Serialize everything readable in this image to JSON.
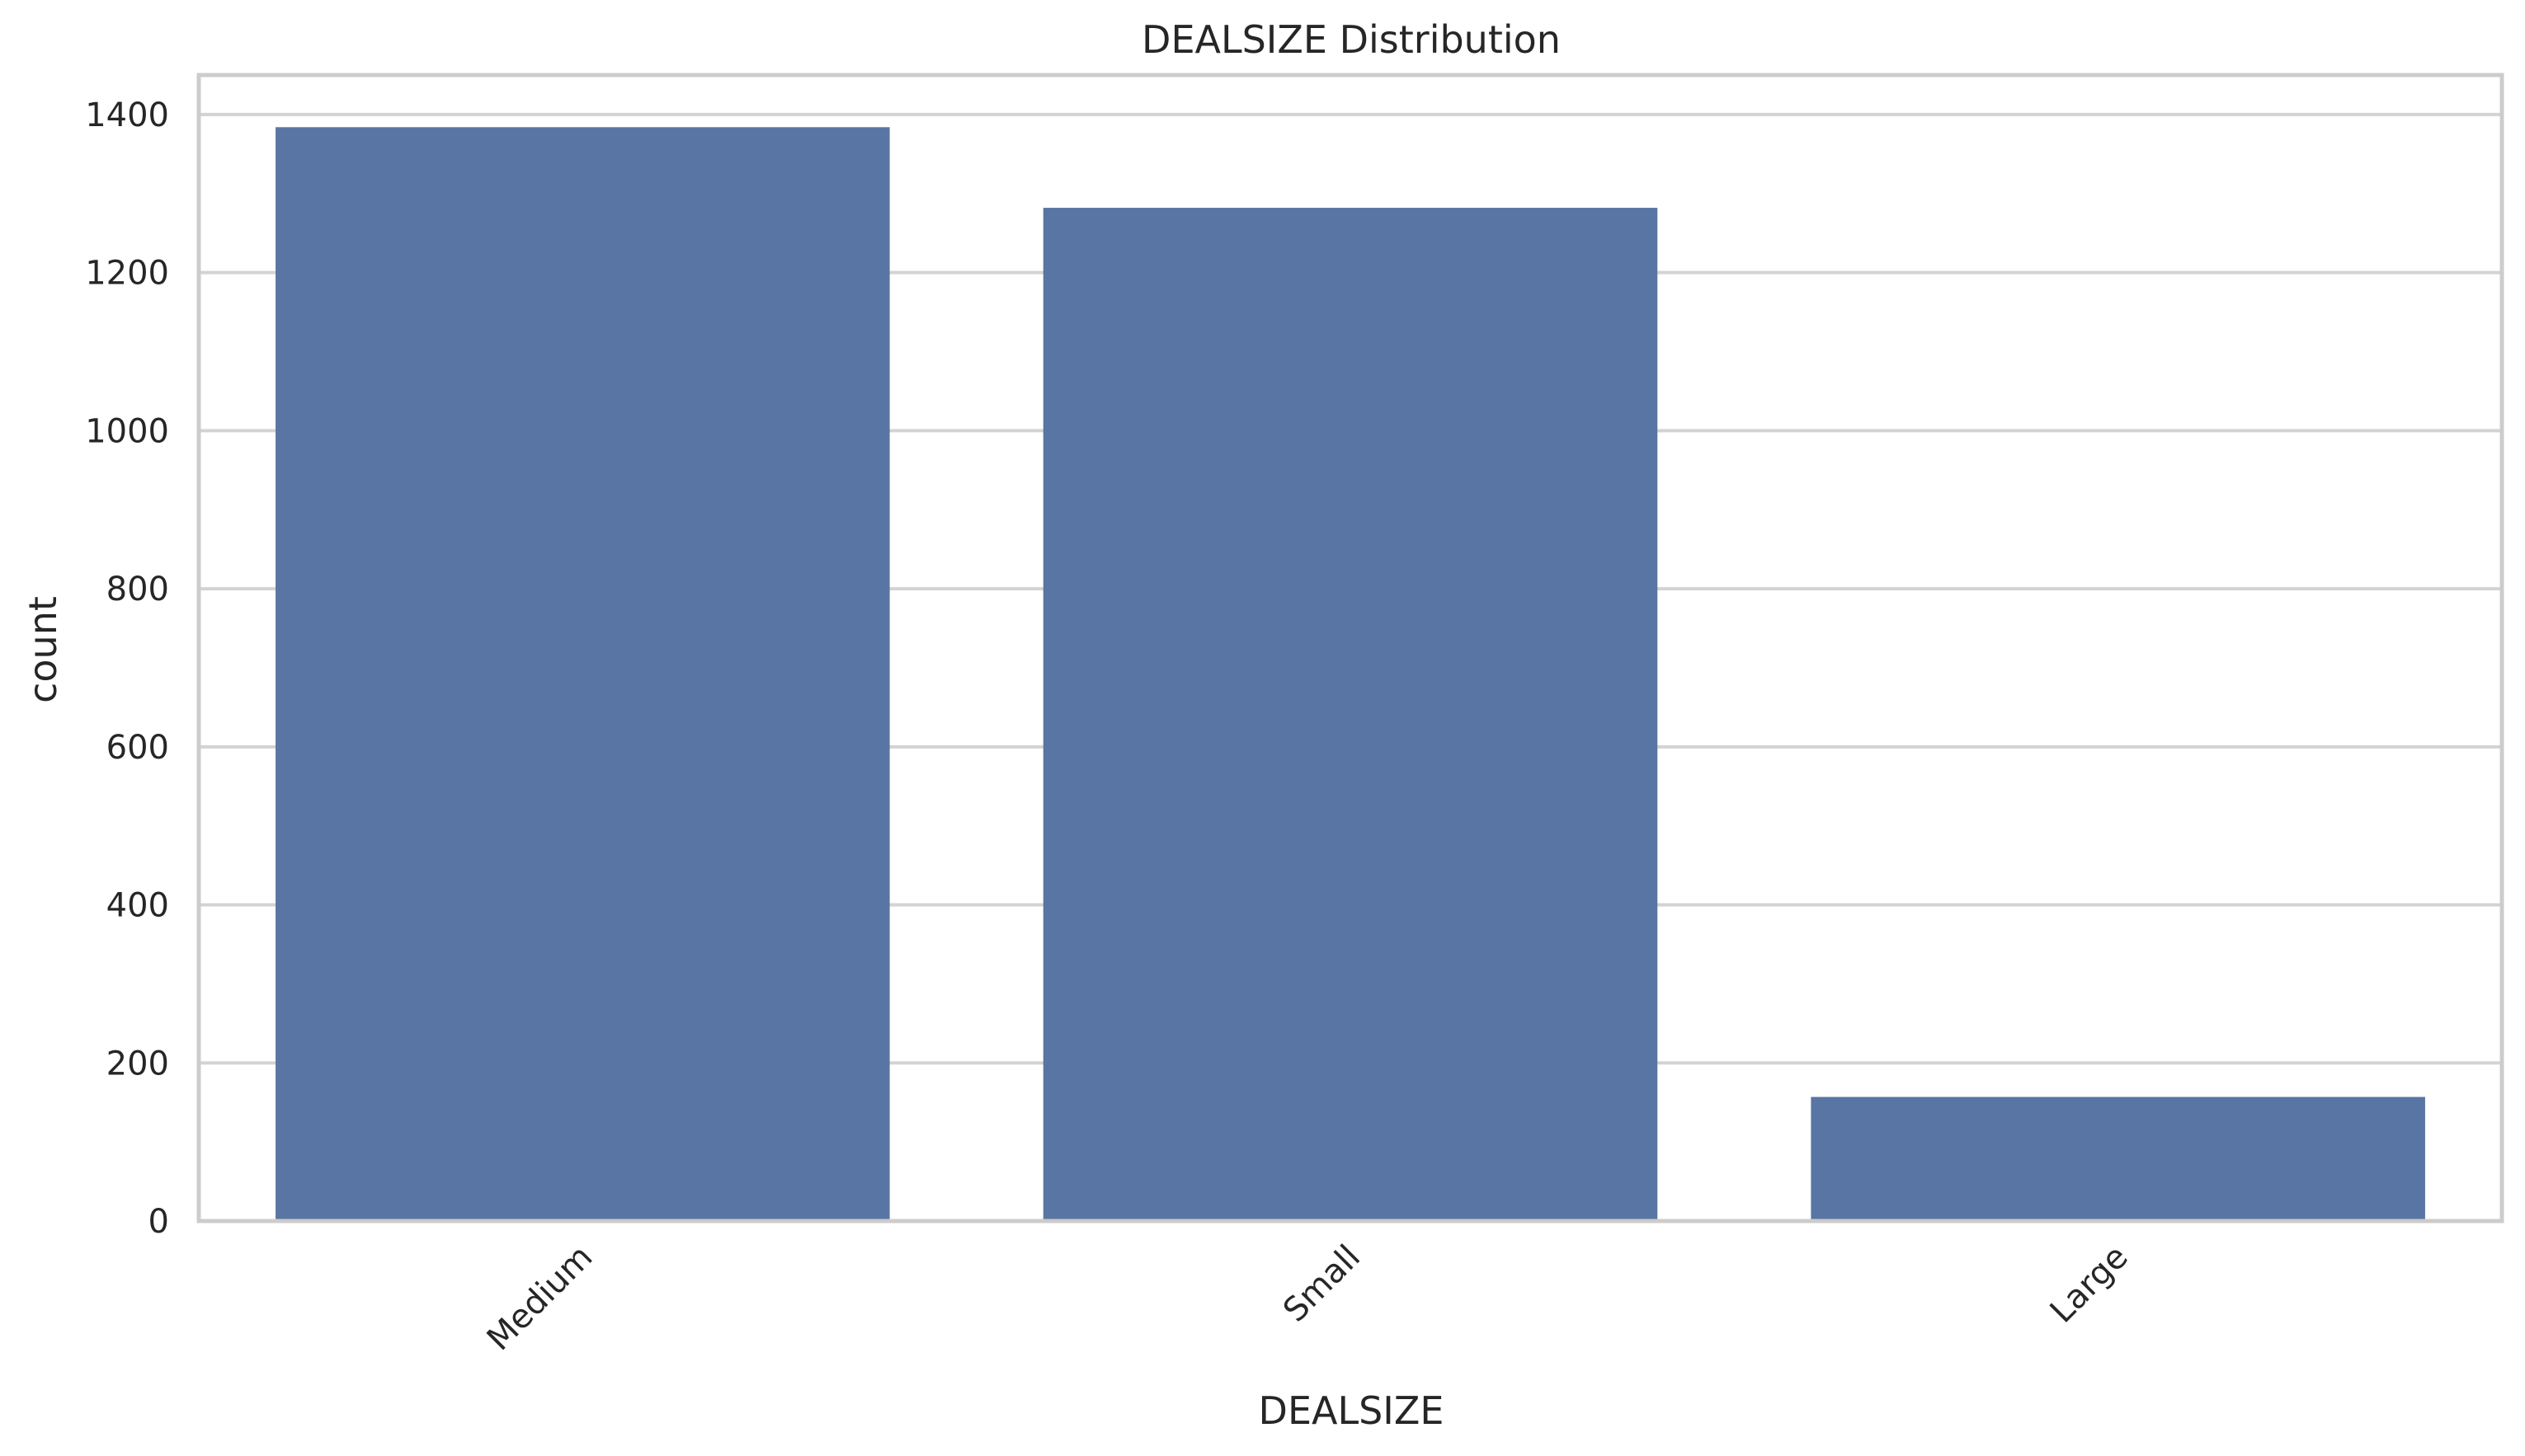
{
  "chart_data": {
    "type": "bar",
    "title": "DEALSIZE Distribution",
    "xlabel": "DEALSIZE",
    "ylabel": "count",
    "categories": [
      "Medium",
      "Small",
      "Large"
    ],
    "values": [
      1384,
      1282,
      157
    ],
    "ylim": [
      0,
      1450
    ],
    "yticks": [
      0,
      200,
      400,
      600,
      800,
      1000,
      1200,
      1400
    ],
    "tick_rotation_deg": -45,
    "grid": "horizontal",
    "bar_color": "#5975a4",
    "grid_color": "#d3d3d3",
    "spine_color": "#cccccc",
    "text_color": "#262626"
  }
}
